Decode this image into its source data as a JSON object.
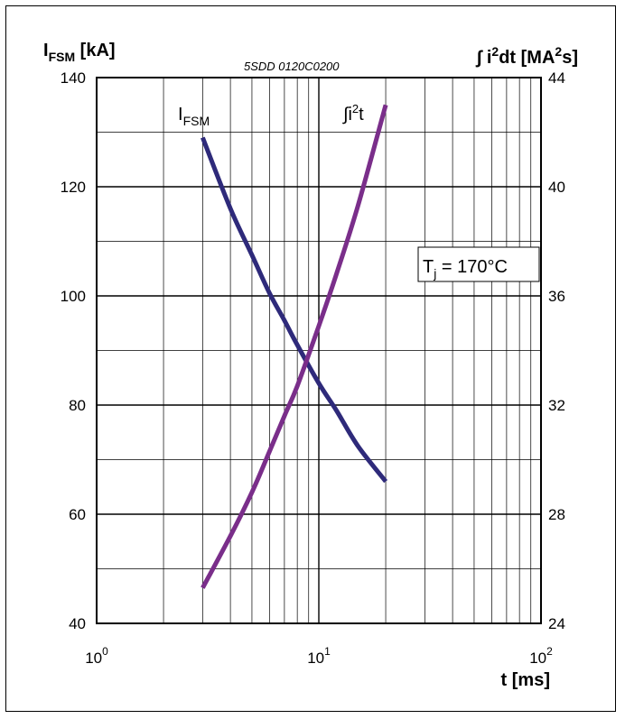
{
  "chart_data": {
    "type": "line",
    "code": "5SDD 0120C0200",
    "x_axis": {
      "label": "t [ms]",
      "scale": "log",
      "range": [
        1,
        100
      ],
      "ticks": [
        {
          "base": "10",
          "exp": "0",
          "value": 1
        },
        {
          "base": "10",
          "exp": "1",
          "value": 10
        },
        {
          "base": "10",
          "exp": "2",
          "value": 100
        }
      ]
    },
    "y_left": {
      "label_main": "I",
      "label_sub": "FSM",
      "label_tail": " [kA]",
      "range": [
        40,
        140
      ],
      "ticks": [
        "40",
        "60",
        "80",
        "100",
        "120",
        "140"
      ]
    },
    "y_right": {
      "label_prefix": "∫ i",
      "label_sup1": "2",
      "label_mid": "dt [MA",
      "label_sup2": "2",
      "label_tail": "s]",
      "range": [
        24,
        44
      ],
      "ticks": [
        "24",
        "28",
        "32",
        "36",
        "40",
        "44"
      ]
    },
    "condition": {
      "main": "T",
      "sub": "j",
      "tail": " = 170°C"
    },
    "grid": true,
    "series": [
      {
        "name": "I",
        "name_sub": "FSM",
        "axis": "left",
        "color": "#2e2a7a",
        "x": [
          3,
          4,
          5,
          6,
          7,
          8,
          10,
          12,
          15,
          20
        ],
        "y": [
          129,
          116,
          107.5,
          100.5,
          95.5,
          91,
          84,
          79,
          72.5,
          66
        ]
      },
      {
        "name": "∫i",
        "name_sup": "2",
        "name_tail": "t",
        "axis": "right",
        "color": "#7a2e8a",
        "x": [
          3,
          4,
          5,
          6,
          7,
          8,
          10,
          12,
          15,
          20
        ],
        "y": [
          25.3,
          27.2,
          28.8,
          30.3,
          31.6,
          32.7,
          34.9,
          36.8,
          39.3,
          43
        ]
      }
    ]
  }
}
